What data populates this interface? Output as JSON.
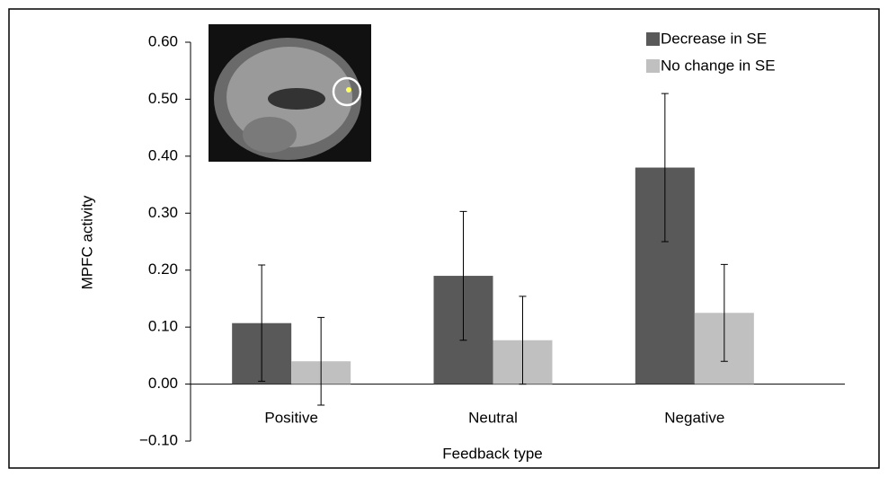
{
  "chart_data": {
    "type": "bar",
    "x_label": "Feedback type",
    "y_label": "MPFC activity",
    "categories": [
      "Positive",
      "Neutral",
      "Negative"
    ],
    "series": [
      {
        "name": "Decrease in SE",
        "color": "#595959",
        "values": [
          0.107,
          0.19,
          0.38
        ],
        "errors": [
          0.102,
          0.113,
          0.13
        ]
      },
      {
        "name": "No change in SE",
        "color": "#c0c0c0",
        "values": [
          0.04,
          0.077,
          0.125
        ],
        "errors": [
          0.077,
          0.077,
          0.085
        ]
      }
    ],
    "ylim": [
      -0.1,
      0.6
    ],
    "yticks": [
      {
        "value": -0.1,
        "label": "−0.10"
      },
      {
        "value": 0,
        "label": "0.00"
      },
      {
        "value": 0.1,
        "label": "0.10"
      },
      {
        "value": 0.2,
        "label": "0.20"
      },
      {
        "value": 0.3,
        "label": "0.30"
      },
      {
        "value": 0.4,
        "label": "0.40"
      },
      {
        "value": 0.5,
        "label": "0.50"
      },
      {
        "value": 0.6,
        "label": "0.60"
      }
    ],
    "legend": "top-right"
  }
}
